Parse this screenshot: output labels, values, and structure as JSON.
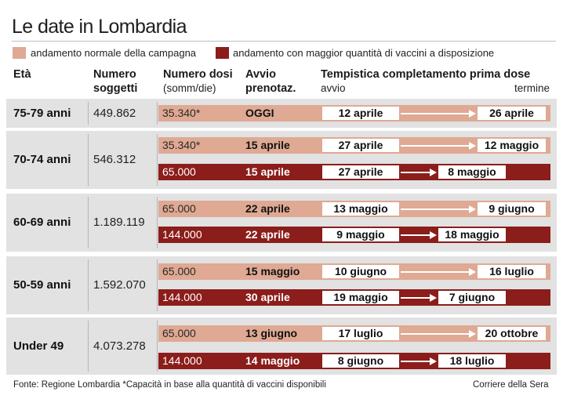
{
  "title": "Le date in Lombardia",
  "legend": {
    "normal": {
      "label": "andamento normale della campagna",
      "color": "#dfa993"
    },
    "more": {
      "label": "andamento con maggior quantità di vaccini a disposizione",
      "color": "#8b1d1b"
    }
  },
  "headers": {
    "age": "Età",
    "subjects_line1": "Numero",
    "subjects_line2": "soggetti",
    "doses_line1": "Numero dosi",
    "doses_line2": "(somm/die)",
    "booking_line1": "Avvio",
    "booking_line2": "prenotaz.",
    "timing": "Tempistica completamento prima dose",
    "start": "avvio",
    "end": "termine"
  },
  "chart_data": {
    "type": "table",
    "title": "Le date in Lombardia",
    "columns": [
      "Età",
      "Numero soggetti",
      "Numero dosi (somm/die)",
      "Avvio prenotaz.",
      "avvio",
      "termine"
    ],
    "groups": [
      {
        "age": "75-79 anni",
        "subjects": "449.862",
        "rows": [
          {
            "scenario": "normal",
            "doses": "35.340*",
            "booking": "OGGI",
            "start": "12 aprile",
            "end": "26 aprile"
          }
        ]
      },
      {
        "age": "70-74 anni",
        "subjects": "546.312",
        "rows": [
          {
            "scenario": "normal",
            "doses": "35.340*",
            "booking": "15 aprile",
            "start": "27 aprile",
            "end": "12 maggio"
          },
          {
            "scenario": "more",
            "doses": "65.000",
            "booking": "15 aprile",
            "start": "27 aprile",
            "end": "8 maggio"
          }
        ]
      },
      {
        "age": "60-69 anni",
        "subjects": "1.189.119",
        "rows": [
          {
            "scenario": "normal",
            "doses": "65.000",
            "booking": "22 aprile",
            "start": "13 maggio",
            "end": "9 giugno"
          },
          {
            "scenario": "more",
            "doses": "144.000",
            "booking": "22 aprile",
            "start": "9 maggio",
            "end": "18 maggio"
          }
        ]
      },
      {
        "age": "50-59 anni",
        "subjects": "1.592.070",
        "rows": [
          {
            "scenario": "normal",
            "doses": "65.000",
            "booking": "15 maggio",
            "start": "10 giugno",
            "end": "16 luglio"
          },
          {
            "scenario": "more",
            "doses": "144.000",
            "booking": "30 aprile",
            "start": "19 maggio",
            "end": "7 giugno"
          }
        ]
      },
      {
        "age": "Under 49",
        "subjects": "4.073.278",
        "rows": [
          {
            "scenario": "normal",
            "doses": "65.000",
            "booking": "13 giugno",
            "start": "17 luglio",
            "end": "20 ottobre"
          },
          {
            "scenario": "more",
            "doses": "144.000",
            "booking": "14 maggio",
            "start": "8 giugno",
            "end": "18 luglio"
          }
        ]
      }
    ]
  },
  "footer": {
    "source": "Fonte: Regione Lombardia *Capacità in base alla quantità di vaccini disponibili",
    "credit": "Corriere della Sera"
  }
}
